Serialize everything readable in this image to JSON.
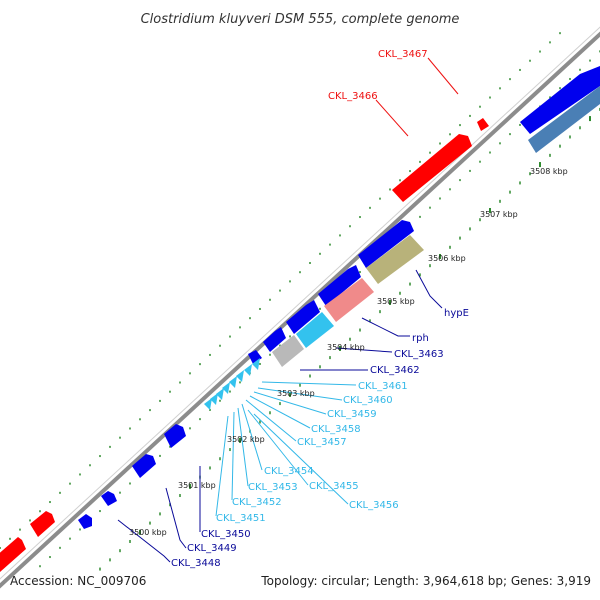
{
  "title": "Clostridium kluyveri DSM 555, complete genome",
  "footer": {
    "accession": "Accession: NC_009706",
    "summary": "Topology: circular; Length: 3,964,618 bp; Genes: 3,919"
  },
  "colors": {
    "backbone": "#8c8c8c",
    "tick": "#2e8b2e",
    "red_gene": "#ff0000",
    "blue_gene": "#0000ee",
    "steel_gene": "#4a7fb5",
    "cyan_gene": "#33c2ee",
    "salmon_gene": "#f08a8a",
    "olive_gene": "#b8b27a",
    "grey_gene": "#b9b9b9",
    "label_red": "#ee1111",
    "label_navy": "#0a0a99",
    "label_cyan": "#33b8e8"
  },
  "kbp_labels": [
    "3500 kbp",
    "3501 kbp",
    "3502 kbp",
    "3503 kbp",
    "3504 kbp",
    "3505 kbp",
    "3506 kbp",
    "3507 kbp",
    "3508 kbp"
  ],
  "gene_labels": [
    {
      "text": "CKL_3467",
      "color": "red"
    },
    {
      "text": "CKL_3466",
      "color": "red"
    },
    {
      "text": "hypE",
      "color": "navy"
    },
    {
      "text": "rph",
      "color": "navy"
    },
    {
      "text": "CKL_3463",
      "color": "navy"
    },
    {
      "text": "CKL_3462",
      "color": "navy"
    },
    {
      "text": "CKL_3461",
      "color": "cyan"
    },
    {
      "text": "CKL_3460",
      "color": "cyan"
    },
    {
      "text": "CKL_3459",
      "color": "cyan"
    },
    {
      "text": "CKL_3458",
      "color": "cyan"
    },
    {
      "text": "CKL_3457",
      "color": "cyan"
    },
    {
      "text": "CKL_3454",
      "color": "cyan"
    },
    {
      "text": "CKL_3455",
      "color": "cyan"
    },
    {
      "text": "CKL_3456",
      "color": "cyan"
    },
    {
      "text": "CKL_3453",
      "color": "cyan"
    },
    {
      "text": "CKL_3452",
      "color": "cyan"
    },
    {
      "text": "CKL_3451",
      "color": "cyan"
    },
    {
      "text": "CKL_3450",
      "color": "navy"
    },
    {
      "text": "CKL_3449",
      "color": "navy"
    },
    {
      "text": "CKL_3448",
      "color": "navy"
    }
  ]
}
